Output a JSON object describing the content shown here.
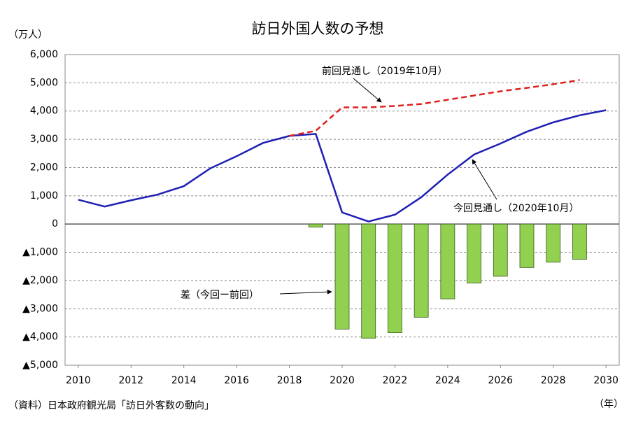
{
  "chart_data": {
    "type": "line",
    "title": "訪日外国人数の予想",
    "y_axis_label": "（万人）",
    "x_axis_label": "（年）",
    "source": "（資料）日本政府観光局「訪日外客数の動向」",
    "x": [
      2010,
      2011,
      2012,
      2013,
      2014,
      2015,
      2016,
      2017,
      2018,
      2019,
      2020,
      2021,
      2022,
      2023,
      2024,
      2025,
      2026,
      2027,
      2028,
      2029,
      2030
    ],
    "series": [
      {
        "name": "今回見通し（2020年10月）",
        "type": "line",
        "color": "#1f1fb4",
        "dashed": false,
        "values": [
          860,
          620,
          840,
          1040,
          1340,
          1970,
          2400,
          2870,
          3120,
          3190,
          410,
          90,
          330,
          950,
          1750,
          2460,
          2850,
          3270,
          3600,
          3850,
          4030
        ]
      },
      {
        "name": "前回見通し（2019年10月）",
        "type": "line",
        "color": "#e0201c",
        "dashed": true,
        "values": [
          null,
          null,
          null,
          null,
          null,
          null,
          null,
          null,
          3120,
          3300,
          4130,
          4130,
          4180,
          4250,
          4400,
          4550,
          4700,
          4820,
          4950,
          5100,
          null
        ]
      },
      {
        "name": "差（今回ー前回）",
        "type": "bar",
        "color": "#92d050",
        "values": [
          null,
          null,
          null,
          null,
          null,
          null,
          null,
          null,
          null,
          -110,
          -3720,
          -4040,
          -3850,
          -3300,
          -2650,
          -2090,
          -1850,
          -1540,
          -1350,
          -1250,
          null
        ]
      }
    ],
    "xlim": [
      2009.5,
      2030.5
    ],
    "xticks": [
      2010,
      2012,
      2014,
      2016,
      2018,
      2020,
      2022,
      2024,
      2026,
      2028,
      2030
    ],
    "ylim": [
      -5000,
      6000
    ],
    "yticks": [
      {
        "value": -5000,
        "label": "▲5,000"
      },
      {
        "value": -4000,
        "label": "▲4,000"
      },
      {
        "value": -3000,
        "label": "▲3,000"
      },
      {
        "value": -2000,
        "label": "▲2,000"
      },
      {
        "value": -1000,
        "label": "▲1,000"
      },
      0,
      {
        "value": 1000,
        "label": "1,000"
      },
      {
        "value": 2000,
        "label": "2,000"
      },
      {
        "value": 3000,
        "label": "3,000"
      },
      {
        "value": 4000,
        "label": "4,000"
      },
      {
        "value": 5000,
        "label": "5,000"
      },
      {
        "value": 6000,
        "label": "6,000"
      }
    ],
    "grid": true
  }
}
